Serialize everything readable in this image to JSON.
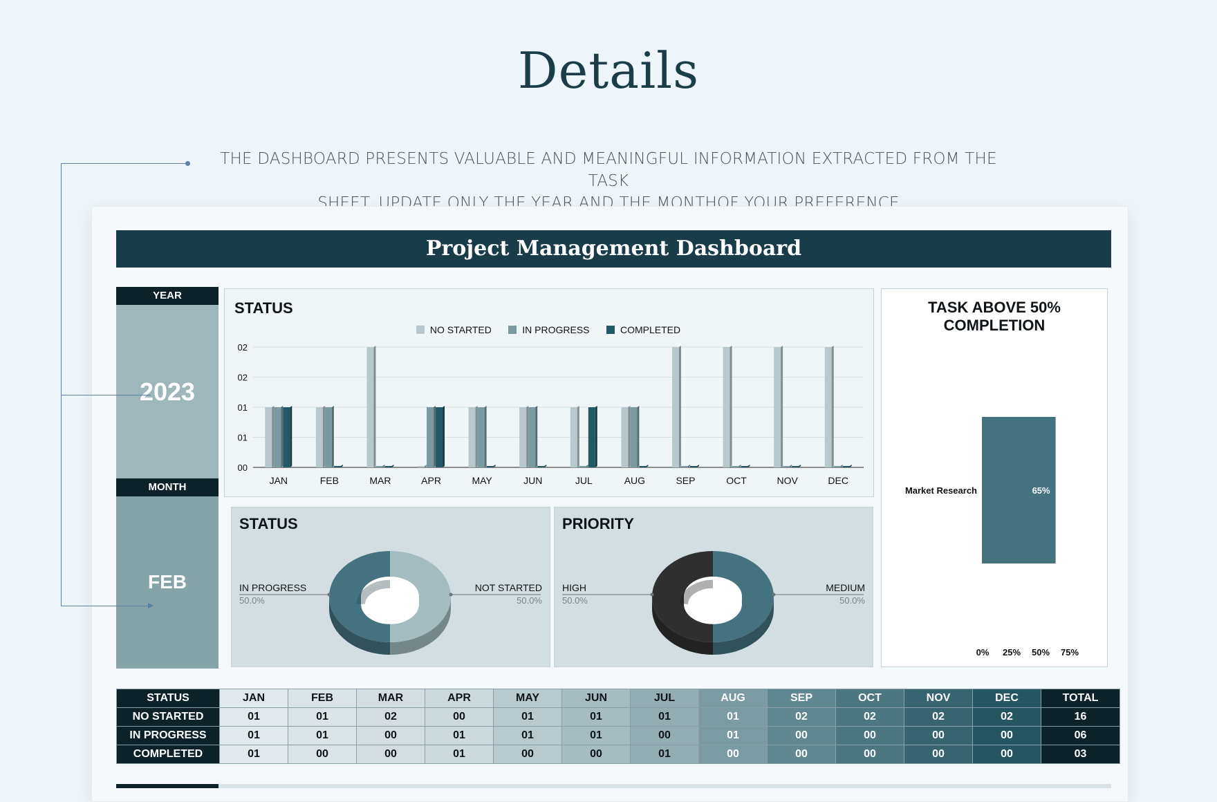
{
  "page": {
    "title": "Details",
    "description_line1": "THE DASHBOARD PRESENTS VALUABLE AND MEANINGFUL INFORMATION EXTRACTED FROM THE TASK",
    "description_line2": "SHEET. UPDATE ONLY THE YEAR AND THE MONTHOF YOUR PREFERENCE"
  },
  "dashboard": {
    "banner": "Project Management Dashboard",
    "year_label": "YEAR",
    "year_value": "2023",
    "month_label": "MONTH",
    "month_value": "FEB"
  },
  "colors": {
    "banner": "#183c48",
    "no_started": "#b8c9ce",
    "in_progress": "#7a9aa2",
    "completed": "#235866",
    "high": "#2f2f2f",
    "medium": "#44727e"
  },
  "chart_data": [
    {
      "type": "bar",
      "title": "STATUS",
      "categories": [
        "JAN",
        "FEB",
        "MAR",
        "APR",
        "MAY",
        "JUN",
        "JUL",
        "AUG",
        "SEP",
        "OCT",
        "NOV",
        "DEC"
      ],
      "y_tick_labels": [
        "00",
        "01",
        "01",
        "02",
        "02"
      ],
      "ylim": [
        0,
        2
      ],
      "legend": "top",
      "grid": true,
      "series": [
        {
          "name": "NO STARTED",
          "color": "#b8c9ce",
          "values": [
            1,
            1,
            2,
            0,
            1,
            1,
            1,
            1,
            2,
            2,
            2,
            2
          ]
        },
        {
          "name": "IN PROGRESS",
          "color": "#7a9aa2",
          "values": [
            1,
            1,
            0,
            1,
            1,
            1,
            0,
            1,
            0,
            0,
            0,
            0
          ]
        },
        {
          "name": "COMPLETED",
          "color": "#235866",
          "values": [
            1,
            0,
            0,
            1,
            0,
            0,
            1,
            0,
            0,
            0,
            0,
            0
          ]
        }
      ]
    },
    {
      "type": "pie",
      "title": "STATUS",
      "slices": [
        {
          "label": "IN PROGRESS",
          "pct_label": "50.0%",
          "value": 50.0,
          "color": "#44727e"
        },
        {
          "label": "NOT STARTED",
          "pct_label": "50.0%",
          "value": 50.0,
          "color": "#a4bbbf"
        }
      ]
    },
    {
      "type": "pie",
      "title": "PRIORITY",
      "slices": [
        {
          "label": "HIGH",
          "pct_label": "50.0%",
          "value": 50.0,
          "color": "#2f2f2f"
        },
        {
          "label": "MEDIUM",
          "pct_label": "50.0%",
          "value": 50.0,
          "color": "#44727e"
        }
      ]
    },
    {
      "type": "bar",
      "title": "TASK ABOVE 50% COMPLETION",
      "orientation": "horizontal",
      "categories": [
        "Market Research"
      ],
      "values": [
        65
      ],
      "value_labels": [
        "65%"
      ],
      "x_tick_labels": [
        "0%",
        "25%",
        "50%",
        "75%"
      ],
      "xlim": [
        0,
        75
      ]
    }
  ],
  "table": {
    "header": [
      "STATUS",
      "JAN",
      "FEB",
      "MAR",
      "APR",
      "MAY",
      "JUN",
      "JUL",
      "AUG",
      "SEP",
      "OCT",
      "NOV",
      "DEC",
      "TOTAL"
    ],
    "rows": [
      [
        "NO STARTED",
        "01",
        "01",
        "02",
        "00",
        "01",
        "01",
        "01",
        "01",
        "02",
        "02",
        "02",
        "02",
        "16"
      ],
      [
        "IN PROGRESS",
        "01",
        "01",
        "00",
        "01",
        "01",
        "01",
        "00",
        "01",
        "00",
        "00",
        "00",
        "00",
        "06"
      ],
      [
        "COMPLETED",
        "01",
        "00",
        "00",
        "01",
        "00",
        "00",
        "01",
        "00",
        "00",
        "00",
        "00",
        "00",
        "03"
      ]
    ]
  }
}
